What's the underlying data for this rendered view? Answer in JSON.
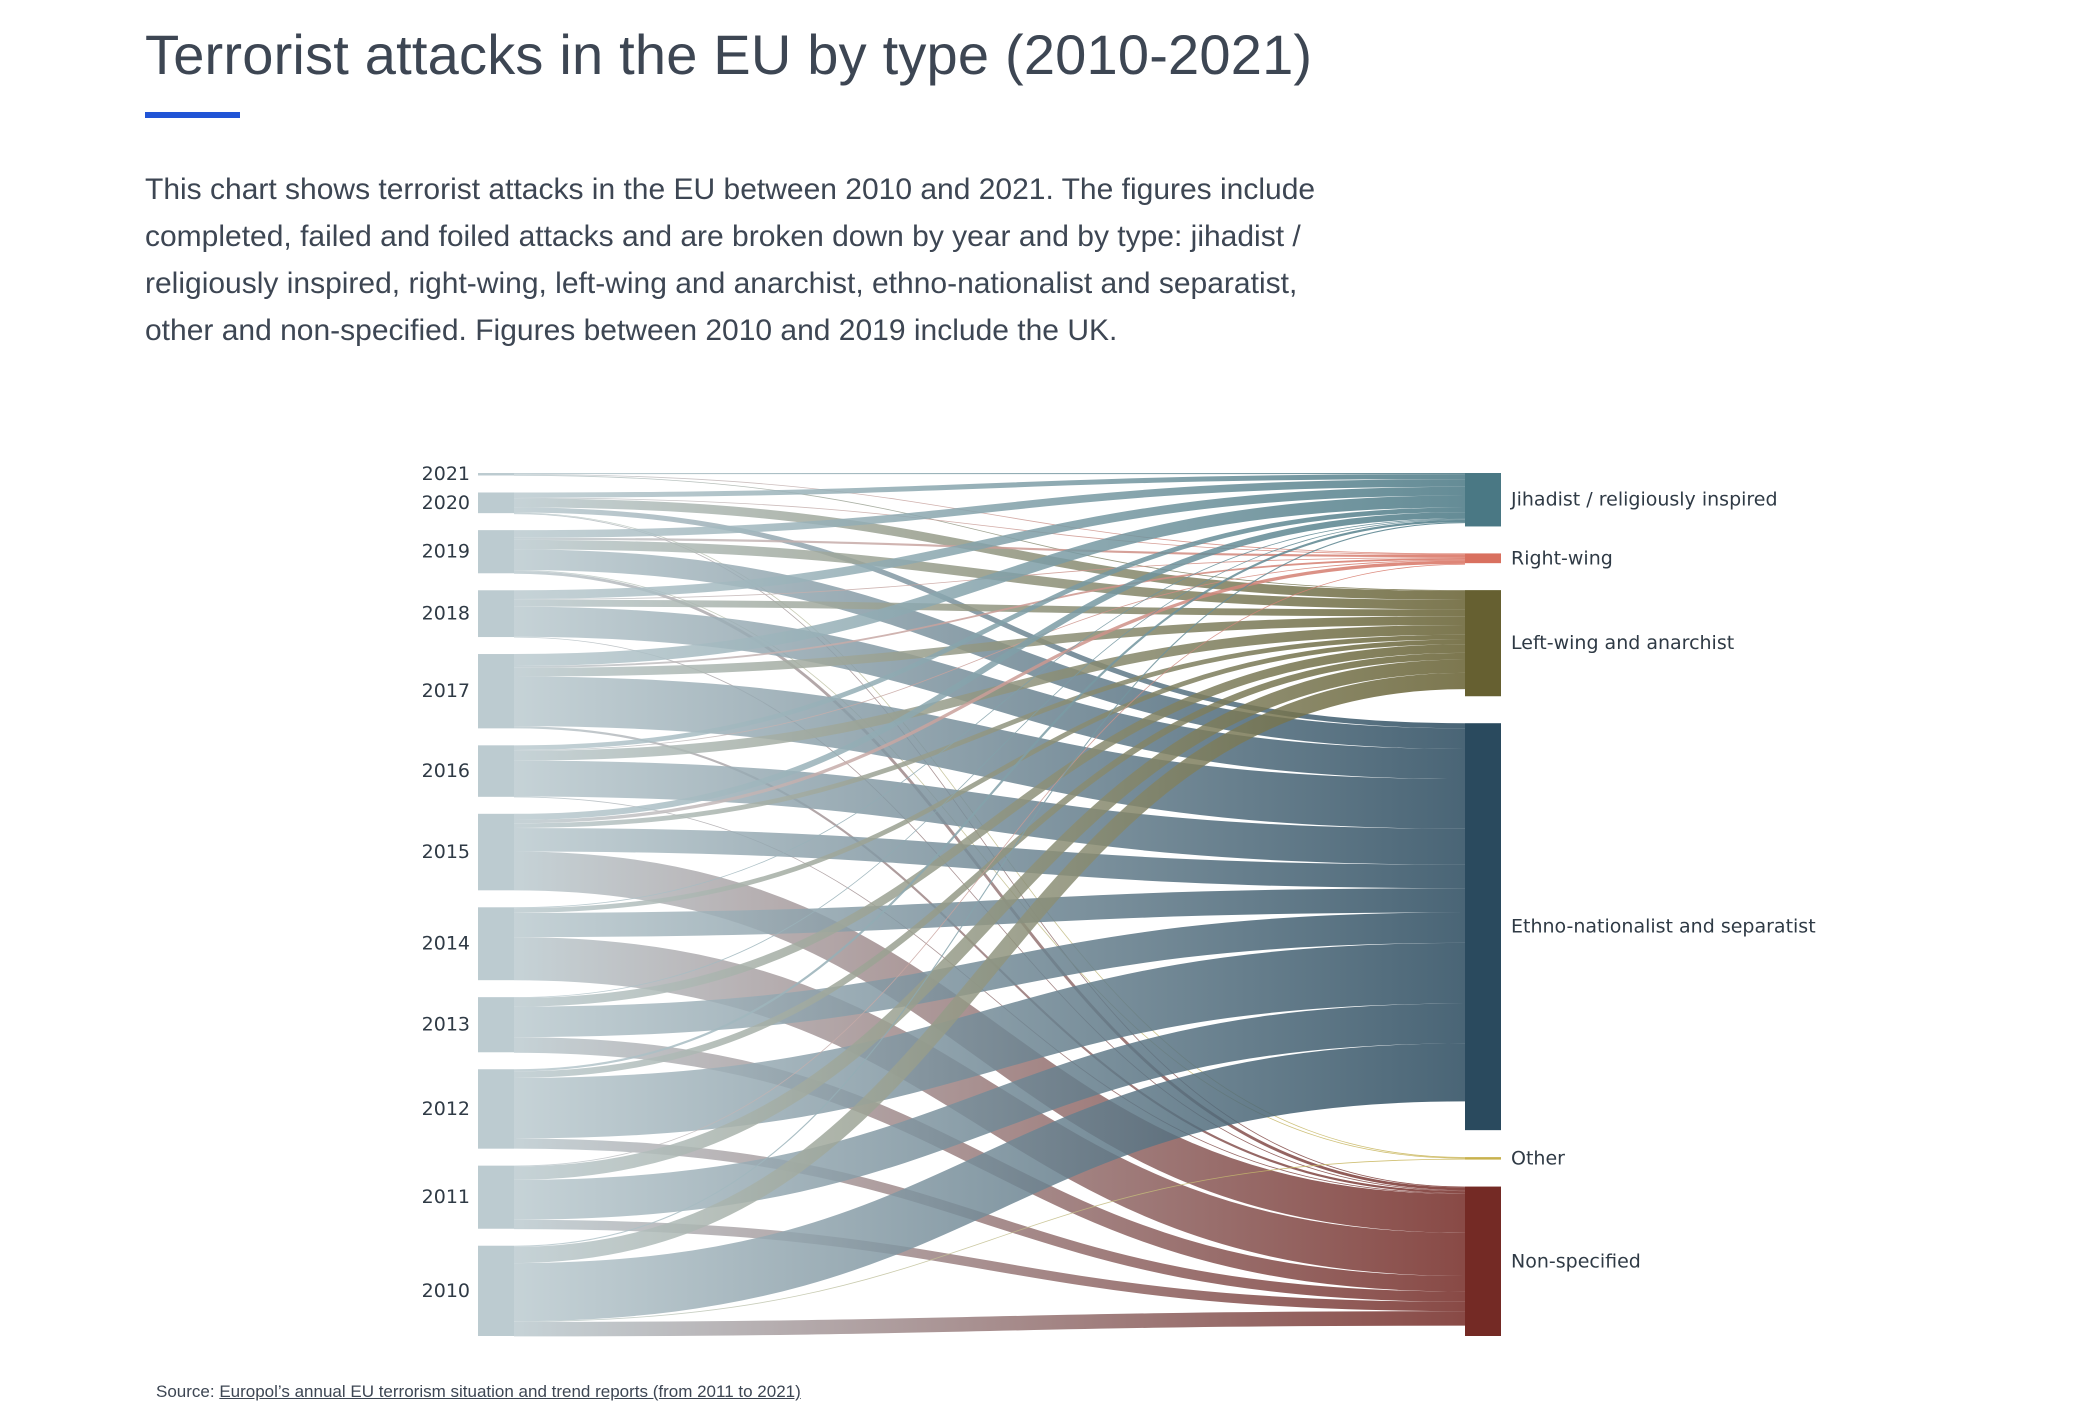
{
  "header": {
    "title": "Terrorist attacks in the EU by type (2010-2021)",
    "description": "This chart shows terrorist attacks in the EU between 2010 and 2021. The figures include completed, failed and foiled attacks and are broken down by year and by type: jihadist / religiously inspired, right-wing, left-wing and anarchist, ethno-nationalist and separatist, other and non-specified. Figures between 2010 and 2019 include the UK."
  },
  "source": {
    "prefix": "Source: ",
    "link_text": "Europol’s annual EU terrorism situation and trend reports (from 2011 to 2021)"
  },
  "chart_data": {
    "type": "sankey",
    "title": "Terrorist attacks in the EU by type (2010-2021)",
    "source_nodes": [
      "2021",
      "2020",
      "2019",
      "2018",
      "2017",
      "2016",
      "2015",
      "2014",
      "2013",
      "2012",
      "2011",
      "2010"
    ],
    "target_nodes": [
      {
        "name": "Jihadist / religiously inspired",
        "color": "#4a7884"
      },
      {
        "name": "Right-wing",
        "color": "#d9705f"
      },
      {
        "name": "Left-wing and anarchist",
        "color": "#666031"
      },
      {
        "name": "Ethno-nationalist and separatist",
        "color": "#2a4a5e"
      },
      {
        "name": "Other",
        "color": "#c8b24e"
      },
      {
        "name": "Non-specified",
        "color": "#742a25"
      }
    ],
    "year_node_color": "#bccbd0",
    "flows": [
      {
        "year": "2021",
        "values": [
          3,
          1,
          1,
          0,
          0,
          0
        ]
      },
      {
        "year": "2020",
        "values": [
          14,
          1,
          25,
          14,
          1,
          2
        ]
      },
      {
        "year": "2019",
        "values": [
          21,
          6,
          26,
          57,
          1,
          8
        ]
      },
      {
        "year": "2018",
        "values": [
          24,
          1,
          19,
          83,
          0,
          2
        ]
      },
      {
        "year": "2017",
        "values": [
          33,
          5,
          24,
          137,
          0,
          6
        ]
      },
      {
        "year": "2016",
        "values": [
          13,
          1,
          27,
          99,
          0,
          2
        ]
      },
      {
        "year": "2015",
        "values": [
          17,
          9,
          13,
          65,
          0,
          107
        ]
      },
      {
        "year": "2014",
        "values": [
          2,
          0,
          13,
          67,
          0,
          119
        ]
      },
      {
        "year": "2013",
        "values": [
          1,
          0,
          24,
          84,
          0,
          43
        ]
      },
      {
        "year": "2012",
        "values": [
          6,
          0,
          18,
          167,
          0,
          28
        ]
      },
      {
        "year": "2011",
        "values": [
          0,
          1,
          37,
          110,
          0,
          26
        ]
      },
      {
        "year": "2010",
        "values": [
          3,
          0,
          45,
          160,
          1,
          40
        ]
      }
    ]
  }
}
